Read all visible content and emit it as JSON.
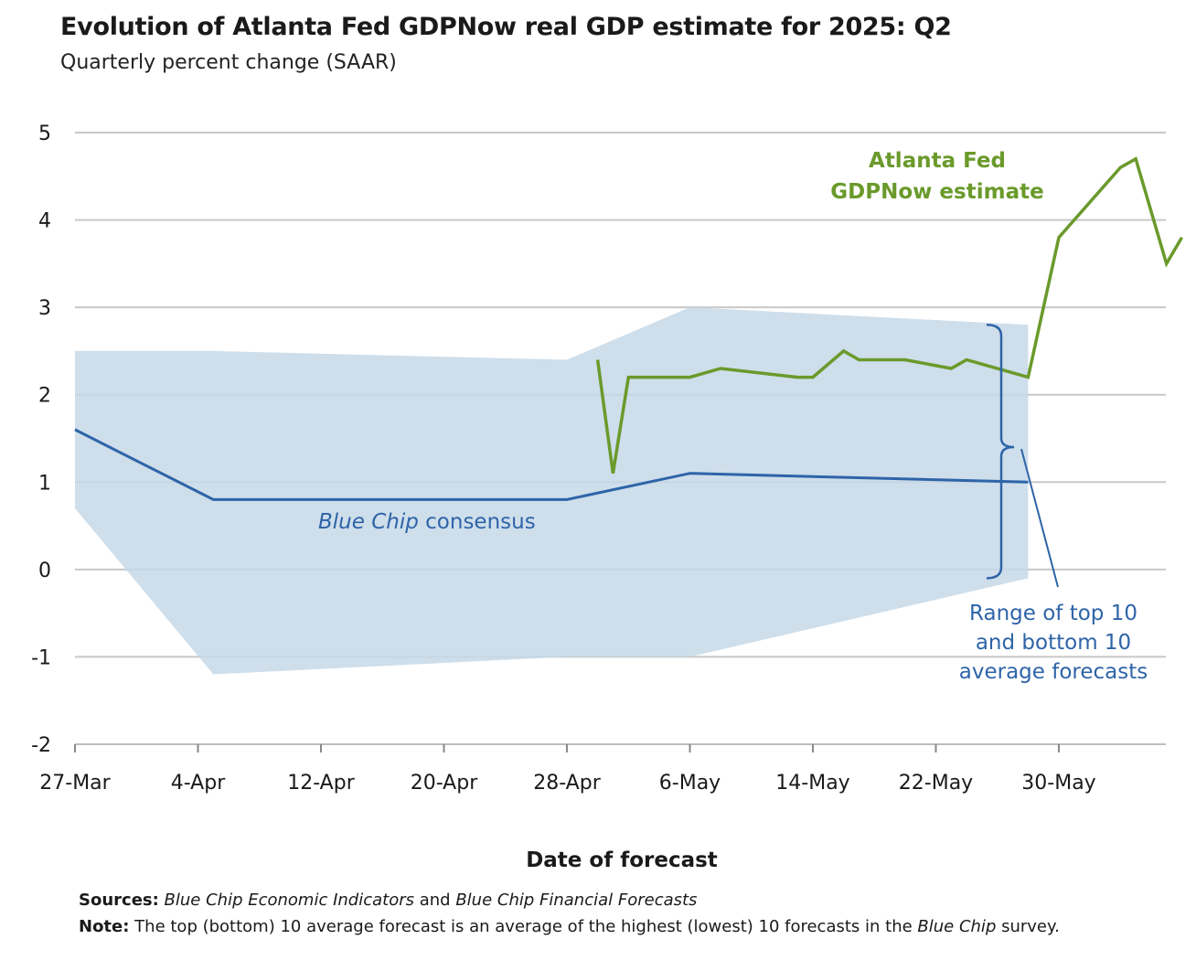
{
  "chart_data": {
    "type": "line",
    "title": "Evolution of Atlanta Fed GDPNow real GDP estimate for 2025: Q2",
    "subtitle": "Quarterly percent change (SAAR)",
    "xlabel": "Date of forecast",
    "ylabel": "",
    "ylim": [
      -2,
      5
    ],
    "yticks": [
      "5",
      "4",
      "3",
      "2",
      "1",
      "0",
      "-1",
      "-2"
    ],
    "xticks": [
      "27-Mar",
      "4-Apr",
      "12-Apr",
      "20-Apr",
      "28-Apr",
      "6-May",
      "14-May",
      "22-May",
      "30-May"
    ],
    "grid": true,
    "series": [
      {
        "name": "Atlanta Fed GDPNow estimate",
        "color": "#6a9a2b",
        "points": [
          [
            "2025-04-30",
            2.4
          ],
          [
            "2025-05-01",
            1.1
          ],
          [
            "2025-05-02",
            2.2
          ],
          [
            "2025-05-06",
            2.2
          ],
          [
            "2025-05-08",
            2.3
          ],
          [
            "2025-05-13",
            2.2
          ],
          [
            "2025-05-14",
            2.2
          ],
          [
            "2025-05-16",
            2.5
          ],
          [
            "2025-05-17",
            2.4
          ],
          [
            "2025-05-20",
            2.4
          ],
          [
            "2025-05-23",
            2.3
          ],
          [
            "2025-05-24",
            2.4
          ],
          [
            "2025-05-28",
            2.2
          ],
          [
            "2025-05-30",
            3.8
          ],
          [
            "2025-06-03",
            4.6
          ],
          [
            "2025-06-04",
            4.7
          ],
          [
            "2025-06-06",
            3.5
          ],
          [
            "2025-06-07",
            3.8
          ]
        ]
      },
      {
        "name": "Blue Chip consensus",
        "color": "#2e64a8",
        "points": [
          [
            "2025-03-27",
            1.6
          ],
          [
            "2025-04-05",
            0.8
          ],
          [
            "2025-04-28",
            0.8
          ],
          [
            "2025-05-06",
            1.1
          ],
          [
            "2025-05-28",
            1.0
          ]
        ]
      }
    ],
    "range_band": {
      "color": "#c5d8e8",
      "top": [
        [
          "2025-03-27",
          2.5
        ],
        [
          "2025-04-05",
          2.5
        ],
        [
          "2025-04-28",
          2.4
        ],
        [
          "2025-05-06",
          3.0
        ],
        [
          "2025-05-28",
          2.8
        ]
      ],
      "bottom": [
        [
          "2025-03-27",
          0.7
        ],
        [
          "2025-04-05",
          -1.2
        ],
        [
          "2025-04-28",
          -1.0
        ],
        [
          "2025-05-06",
          -1.0
        ],
        [
          "2025-05-28",
          -0.1
        ]
      ]
    },
    "annotations": {
      "gdpnow": [
        "Atlanta Fed",
        "GDPNow estimate"
      ],
      "bluechip_italic": "Blue Chip",
      "bluechip_rest": " consensus",
      "range": [
        "Range of top 10",
        "and bottom 10",
        "average forecasts"
      ]
    }
  },
  "footer": {
    "sources_label": "Sources:",
    "sources_italic_1": "Blue Chip Economic Indicators",
    "sources_and": " and ",
    "sources_italic_2": "Blue Chip Financial Forecasts",
    "note_label": "Note:",
    "note_text_1": " The top (bottom) 10 average forecast is an average of the highest (lowest) 10 forecasts in the ",
    "note_italic": "Blue Chip",
    "note_text_2": " survey."
  }
}
